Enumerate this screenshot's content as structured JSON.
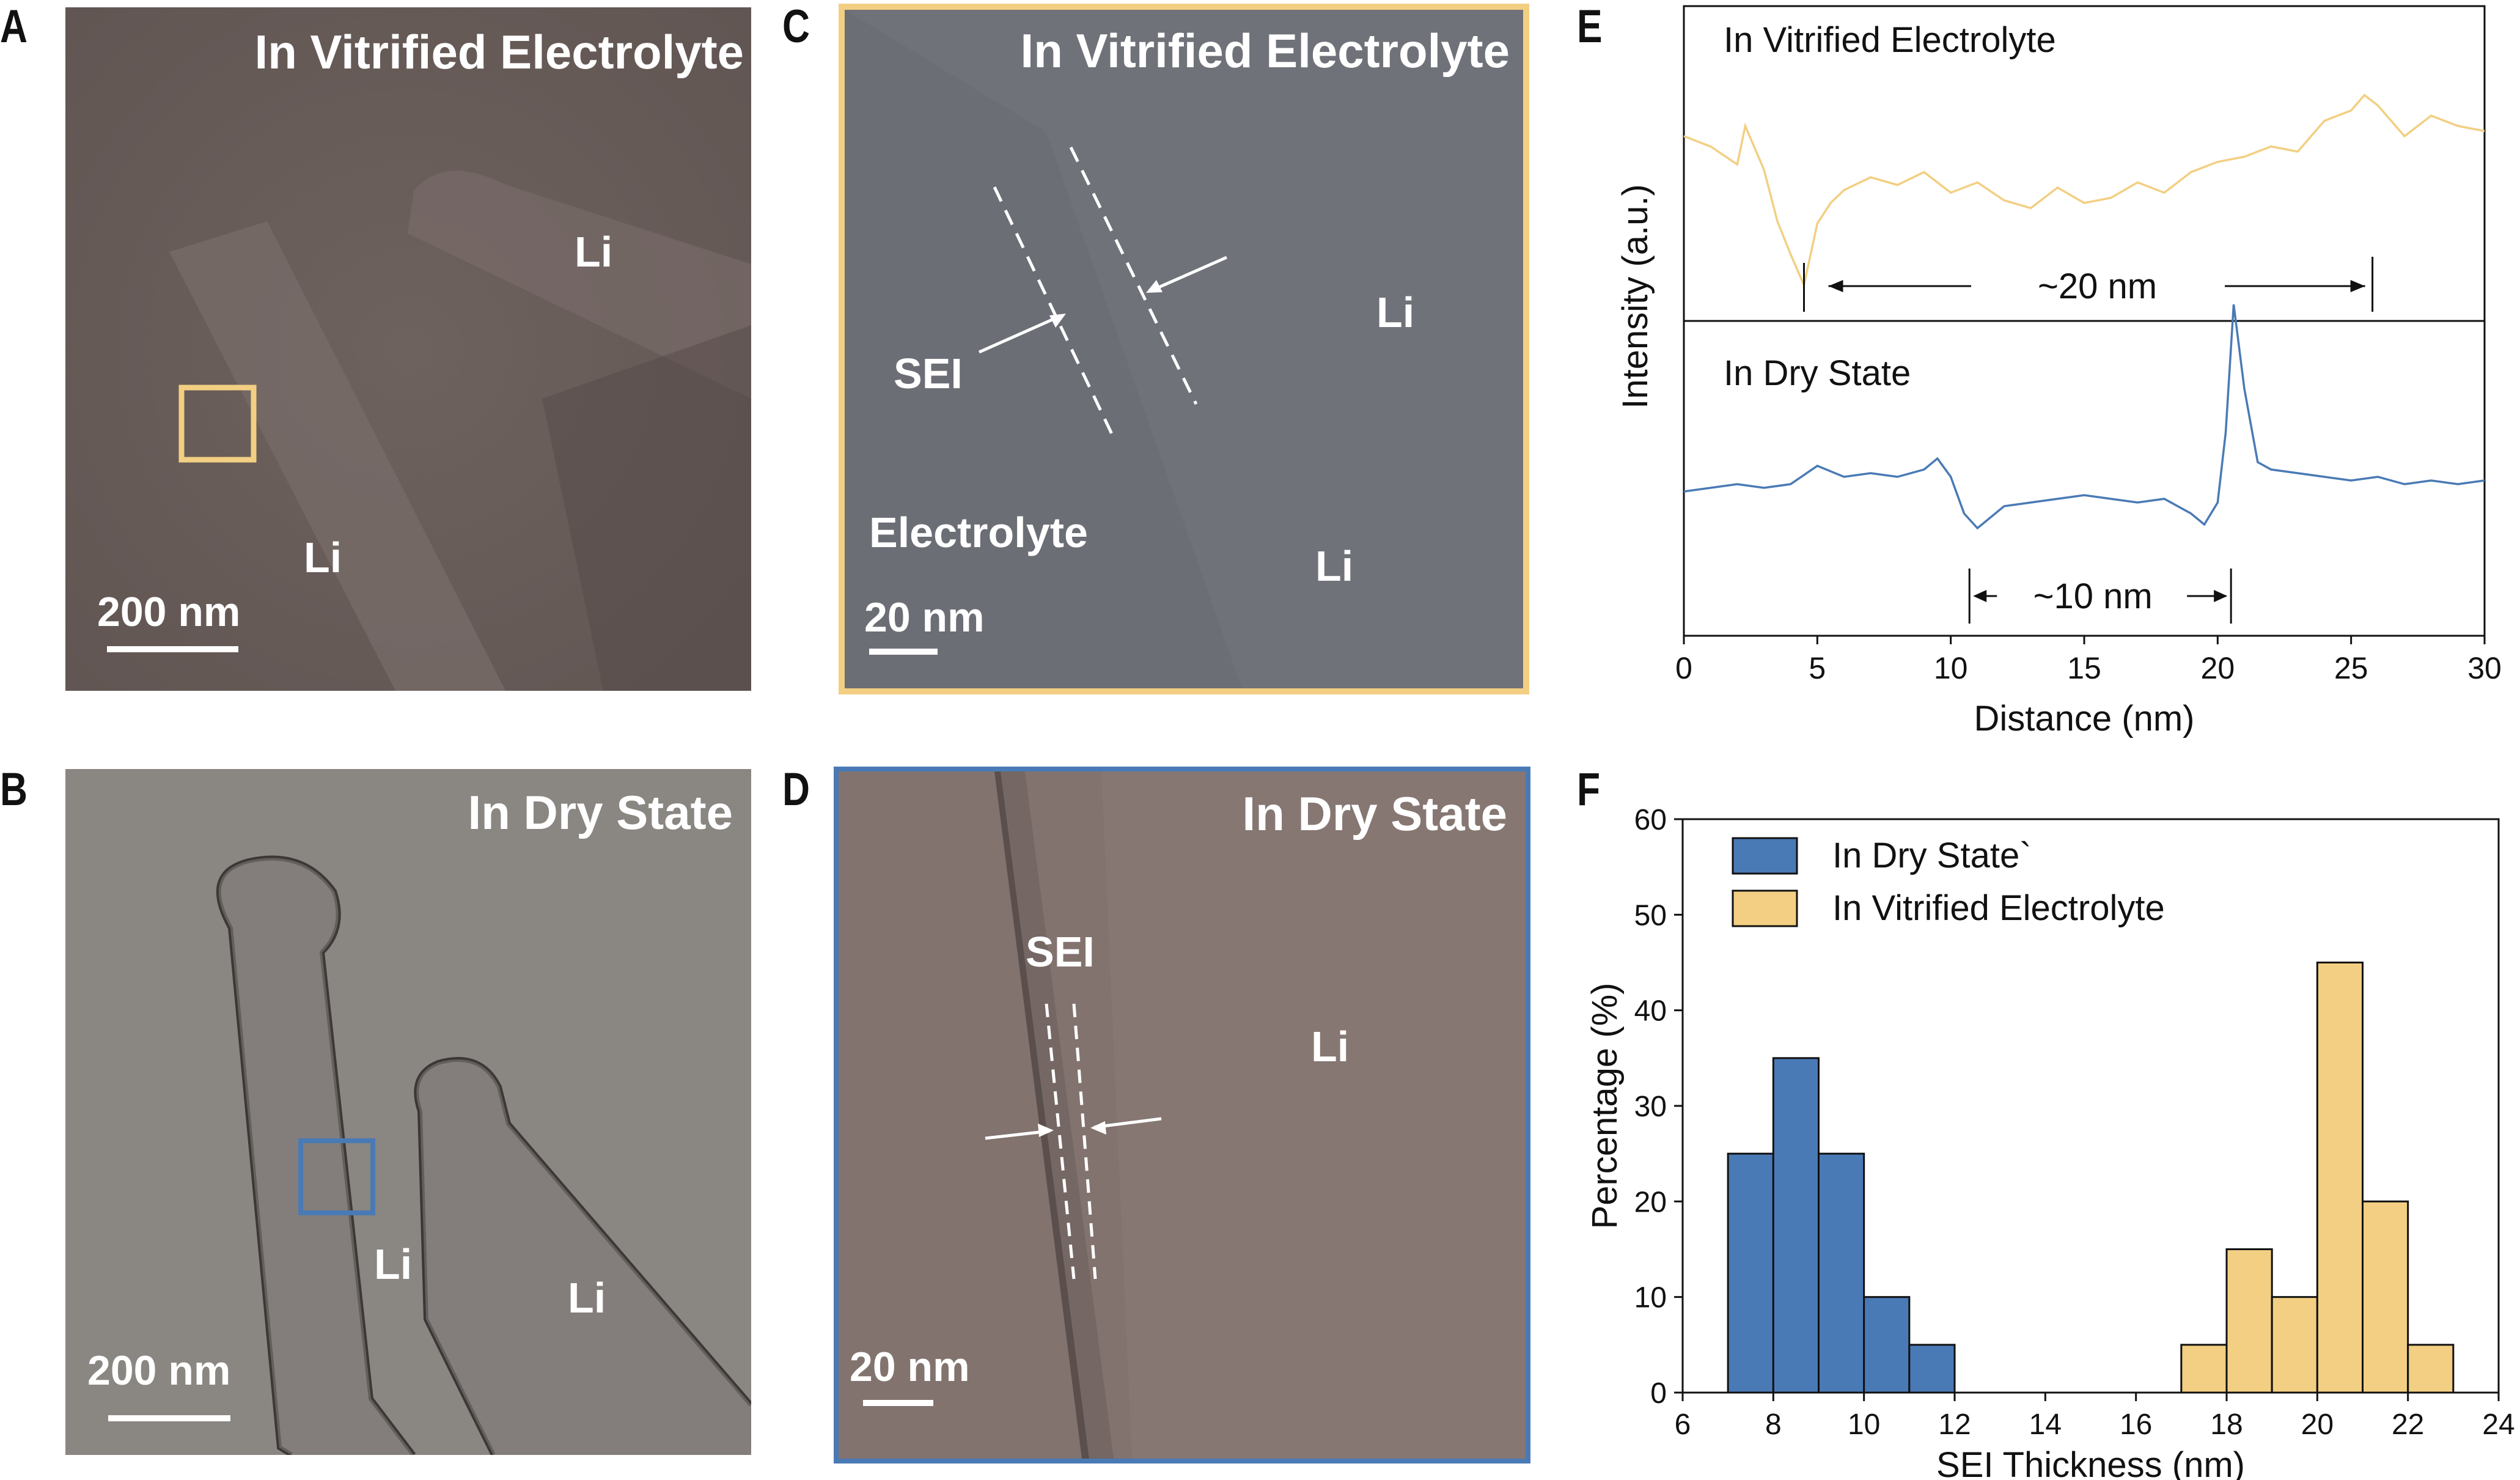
{
  "panels": {
    "A": {
      "letter": "A",
      "title": "In Vitrified Electrolyte",
      "labels": [
        "Li",
        "Li"
      ],
      "scalebar": "200 nm",
      "box_color": "#f2cf82"
    },
    "B": {
      "letter": "B",
      "title": "In Dry State",
      "labels": [
        "Li",
        "Li"
      ],
      "scalebar": "200 nm",
      "box_color": "#4a7ab5"
    },
    "C": {
      "letter": "C",
      "title": "In Vitrified Electrolyte",
      "labels": [
        "SEI",
        "Li",
        "Electrolyte",
        "Li"
      ],
      "scalebar": "20 nm",
      "border_color": "#f2cf82"
    },
    "D": {
      "letter": "D",
      "title": "In Dry State",
      "labels": [
        "SEI",
        "Li"
      ],
      "scalebar": "20 nm",
      "border_color": "#4a7ab5"
    }
  },
  "chart_data": [
    {
      "panel": "E",
      "type": "line",
      "xlabel": "Distance (nm)",
      "ylabel": "Intensity (a.u.)",
      "xlim": [
        0,
        30
      ],
      "xticks": [
        "0",
        "5",
        "10",
        "15",
        "20",
        "25",
        "30"
      ],
      "series": [
        {
          "name": "In Vitrified Electrolyte",
          "color": "#f2cf82",
          "x": [
            0,
            1,
            2,
            2.3,
            3,
            3.5,
            4,
            4.5,
            5,
            5.5,
            6,
            7,
            8,
            9,
            10,
            11,
            12,
            13,
            14,
            15,
            16,
            17,
            18,
            19,
            20,
            21,
            22,
            23,
            24,
            25,
            25.5,
            26,
            27,
            28,
            29,
            30
          ],
          "y": [
            0.66,
            0.62,
            0.55,
            0.7,
            0.53,
            0.33,
            0.2,
            0.08,
            0.32,
            0.4,
            0.45,
            0.5,
            0.47,
            0.52,
            0.44,
            0.48,
            0.41,
            0.38,
            0.46,
            0.4,
            0.42,
            0.48,
            0.44,
            0.52,
            0.56,
            0.58,
            0.62,
            0.6,
            0.72,
            0.76,
            0.82,
            0.78,
            0.66,
            0.74,
            0.7,
            0.68
          ],
          "annotation": "~20 nm",
          "annotation_range": [
            4.5,
            25.8
          ]
        },
        {
          "name": "In Dry State",
          "color": "#4a7ab5",
          "x": [
            0,
            1,
            2,
            3,
            4,
            5,
            6,
            7,
            8,
            9,
            9.5,
            10,
            10.5,
            11,
            12,
            13,
            14,
            15,
            16,
            17,
            18,
            19,
            19.5,
            20,
            20.3,
            20.6,
            21,
            21.5,
            22,
            23,
            24,
            25,
            26,
            27,
            28,
            29,
            30
          ],
          "y": [
            0.46,
            0.47,
            0.48,
            0.47,
            0.48,
            0.53,
            0.5,
            0.51,
            0.5,
            0.52,
            0.55,
            0.5,
            0.4,
            0.36,
            0.42,
            0.43,
            0.44,
            0.45,
            0.44,
            0.43,
            0.44,
            0.4,
            0.37,
            0.43,
            0.62,
            0.97,
            0.74,
            0.54,
            0.52,
            0.51,
            0.5,
            0.49,
            0.5,
            0.48,
            0.49,
            0.48,
            0.49
          ],
          "annotation": "~10 nm",
          "annotation_range": [
            10.7,
            20.5
          ]
        }
      ]
    },
    {
      "panel": "F",
      "type": "bar",
      "xlabel": "SEI Thickness (nm)",
      "ylabel": "Percentage (%)",
      "xlim": [
        6,
        24
      ],
      "ylim": [
        0,
        60
      ],
      "xticks": [
        "6",
        "8",
        "10",
        "12",
        "14",
        "16",
        "18",
        "20",
        "22",
        "24"
      ],
      "yticks": [
        "0",
        "10",
        "20",
        "30",
        "40",
        "50",
        "60"
      ],
      "bin_width": 1,
      "series": [
        {
          "name": "In Dry State`",
          "color": "#4a7ab5",
          "bin_starts": [
            7,
            8,
            9,
            10,
            11
          ],
          "values": [
            25,
            35,
            25,
            10,
            5
          ]
        },
        {
          "name": "In Vitrified Electrolyte",
          "color": "#f2cf82",
          "bin_starts": [
            17,
            18,
            19,
            20,
            21,
            22
          ],
          "values": [
            5,
            15,
            10,
            45,
            20,
            5
          ]
        }
      ]
    }
  ]
}
